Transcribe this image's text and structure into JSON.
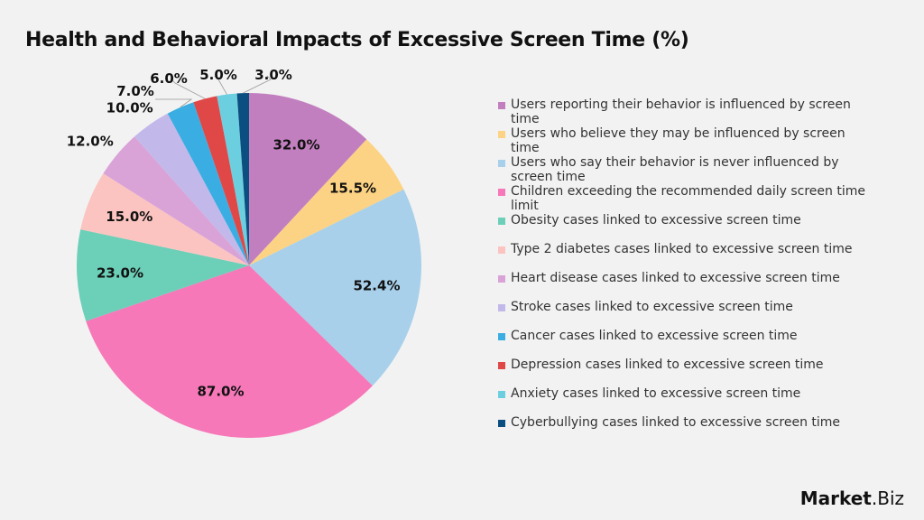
{
  "chart_data": {
    "type": "pie",
    "title": "Health and Behavioral Impacts of Excessive Screen Time (%)",
    "categories": [
      "Users reporting their behavior is influenced by screen time",
      "Users who believe they may be influenced by screen time",
      "Users who say their behavior is never influenced by screen time",
      "Children exceeding the recommended daily screen time limit",
      "Obesity cases linked to excessive screen time",
      "Type 2 diabetes cases linked to excessive screen time",
      "Heart disease cases linked to excessive screen time",
      "Stroke cases linked to excessive screen time",
      "Cancer cases linked to excessive screen time",
      "Depression cases linked to excessive screen time",
      "Anxiety cases linked to excessive screen time",
      "Cyberbullying cases linked to excessive screen time"
    ],
    "values": [
      32.0,
      15.5,
      52.4,
      87.0,
      23.0,
      15.0,
      12.0,
      10.0,
      7.0,
      6.0,
      5.0,
      3.0
    ],
    "labels": [
      "32.0%",
      "15.5%",
      "52.4%",
      "87.0%",
      "23.0%",
      "15.0%",
      "12.0%",
      "10.0%",
      "7.0%",
      "6.0%",
      "5.0%",
      "3.0%"
    ],
    "colors": [
      "#c27fbf",
      "#fcd384",
      "#a8d0ea",
      "#f678b8",
      "#6ccfb8",
      "#fbc4c0",
      "#d9a3d8",
      "#c3b8ea",
      "#3aaee2",
      "#e04848",
      "#6ccfe0",
      "#0b4e80"
    ],
    "legend_position": "right",
    "start": "top, clockwise"
  },
  "logo": {
    "text": "Market",
    "suffix": ".Biz"
  }
}
